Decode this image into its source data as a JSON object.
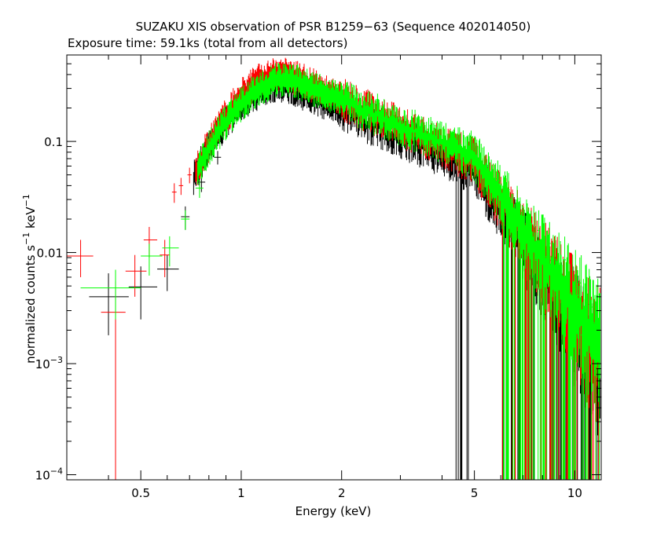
{
  "chart_data": {
    "type": "scatter",
    "title": "SUZAKU XIS observation of PSR B1259−63 (Sequence 402014050)",
    "subtitle": "Exposure time: 59.1ks (total from all detectors)",
    "xlabel": "Energy (keV)",
    "ylabel_base": "normalized counts s",
    "ylabel_exp1": "−1",
    "ylabel_mid": " keV",
    "ylabel_exp2": "−1",
    "x_scale": "log",
    "y_scale": "log",
    "xlim": [
      0.3,
      12.0
    ],
    "ylim": [
      9e-05,
      0.6
    ],
    "x_ticks": [
      0.5,
      1,
      2,
      5,
      10
    ],
    "x_tick_labels": [
      "0.5",
      "1",
      "2",
      "5",
      "10"
    ],
    "y_ticks": [
      0.0001,
      0.001,
      0.01,
      0.1
    ],
    "y_tick_labels": [
      {
        "base": "10",
        "exp": "−4"
      },
      {
        "base": "10",
        "exp": "−3"
      },
      {
        "base": "0.01",
        "exp": ""
      },
      {
        "base": "0.1",
        "exp": ""
      }
    ],
    "grid": false,
    "series_colors": [
      "#000000",
      "#ff0000",
      "#00ff00"
    ],
    "spectrum_model": {
      "peak_energy_keV": [
        1.35,
        1.35,
        1.4
      ],
      "peak_value": [
        0.33,
        0.42,
        0.37
      ],
      "value_at_5keV": [
        0.055,
        0.068,
        0.075
      ],
      "value_at_10keV": [
        0.0025,
        0.0032,
        0.0038
      ]
    },
    "series": [
      {
        "color": "#000000",
        "low_energy_points": [
          {
            "x": 0.4,
            "xerr": [
              0.35,
              0.46
            ],
            "y": 0.004,
            "yerr": [
              0.0018,
              0.0065
            ]
          },
          {
            "x": 0.5,
            "xerr": [
              0.46,
              0.56
            ],
            "y": 0.0049,
            "yerr": [
              0.0025,
              0.0075
            ]
          },
          {
            "x": 0.6,
            "xerr": [
              0.56,
              0.65
            ],
            "y": 0.0071,
            "yerr": [
              0.0045,
              0.0095
            ]
          },
          {
            "x": 0.68,
            "xerr": [
              0.66,
              0.7
            ],
            "y": 0.021,
            "yerr": [
              0.016,
              0.026
            ]
          },
          {
            "x": 0.76,
            "xerr": [
              0.74,
              0.78
            ],
            "y": 0.043,
            "yerr": [
              0.035,
              0.05
            ]
          },
          {
            "x": 0.85,
            "xerr": [
              0.83,
              0.87
            ],
            "y": 0.072,
            "yerr": [
              0.062,
              0.082
            ]
          }
        ]
      },
      {
        "color": "#ff0000",
        "low_energy_points": [
          {
            "x": 0.33,
            "xerr": [
              0.3,
              0.36
            ],
            "y": 0.0093,
            "yerr": [
              0.006,
              0.013
            ]
          },
          {
            "x": 0.42,
            "xerr": [
              0.38,
              0.45
            ],
            "y": 0.0029,
            "yerr": [
              9e-05,
              0.0055
            ]
          },
          {
            "x": 0.48,
            "xerr": [
              0.45,
              0.52
            ],
            "y": 0.0068,
            "yerr": [
              0.004,
              0.0095
            ]
          },
          {
            "x": 0.53,
            "xerr": [
              0.51,
              0.56
            ],
            "y": 0.013,
            "yerr": [
              0.009,
              0.017
            ]
          },
          {
            "x": 0.59,
            "xerr": [
              0.57,
              0.61
            ],
            "y": 0.0095,
            "yerr": [
              0.006,
              0.013
            ]
          },
          {
            "x": 0.63,
            "xerr": [
              0.62,
              0.64
            ],
            "y": 0.035,
            "yerr": [
              0.028,
              0.042
            ]
          },
          {
            "x": 0.66,
            "xerr": [
              0.65,
              0.67
            ],
            "y": 0.04,
            "yerr": [
              0.033,
              0.047
            ]
          },
          {
            "x": 0.7,
            "xerr": [
              0.69,
              0.71
            ],
            "y": 0.05,
            "yerr": [
              0.042,
              0.058
            ]
          }
        ]
      },
      {
        "color": "#00ff00",
        "low_energy_points": [
          {
            "x": 0.42,
            "xerr": [
              0.33,
              0.5
            ],
            "y": 0.0048,
            "yerr": [
              0.0025,
              0.007
            ]
          },
          {
            "x": 0.53,
            "xerr": [
              0.5,
              0.58
            ],
            "y": 0.0093,
            "yerr": [
              0.0062,
              0.012
            ]
          },
          {
            "x": 0.61,
            "xerr": [
              0.58,
              0.65
            ],
            "y": 0.011,
            "yerr": [
              0.0075,
              0.014
            ]
          },
          {
            "x": 0.68,
            "xerr": [
              0.66,
              0.7
            ],
            "y": 0.02,
            "yerr": [
              0.016,
              0.024
            ]
          },
          {
            "x": 0.75,
            "xerr": [
              0.73,
              0.77
            ],
            "y": 0.038,
            "yerr": [
              0.031,
              0.045
            ]
          }
        ]
      }
    ]
  }
}
